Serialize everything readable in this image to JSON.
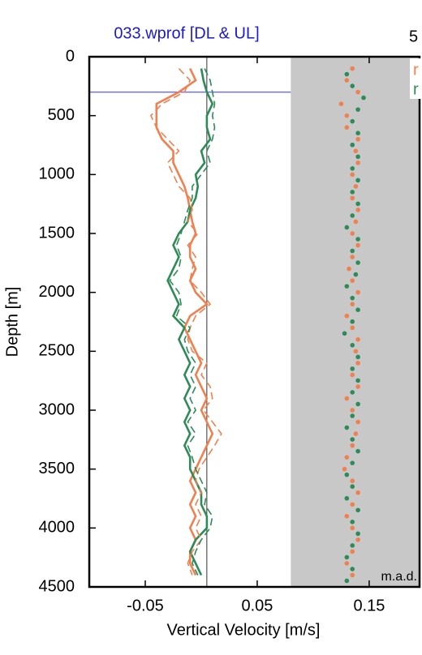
{
  "chart_data": {
    "type": "line",
    "title": "033.wprof [DL & UL]",
    "top_right_label": "5",
    "x_label": "Vertical Velocity [m/s]",
    "y_label": "Depth [m]",
    "annotation": "m.a.d.",
    "xlim": [
      -0.1,
      0.195
    ],
    "ylim": [
      0,
      4500
    ],
    "y_inverted": true,
    "xticks": [
      -0.05,
      0.05,
      0.15
    ],
    "yticks": [
      0,
      500,
      1000,
      1500,
      2000,
      2500,
      3000,
      3500,
      4000,
      4500
    ],
    "shaded_from": 0.08,
    "shade_color": "#c8c8c8",
    "hline": 300,
    "hline_color": "#7070e8",
    "vline": 0.005,
    "depth": [
      100,
      200,
      300,
      400,
      500,
      600,
      700,
      800,
      900,
      1000,
      1100,
      1200,
      1300,
      1400,
      1500,
      1600,
      1700,
      1800,
      1900,
      2000,
      2100,
      2200,
      2300,
      2400,
      2500,
      2600,
      2700,
      2800,
      2900,
      3000,
      3100,
      3200,
      3300,
      3400,
      3500,
      3600,
      3700,
      3800,
      3900,
      4000,
      4100,
      4200,
      4300,
      4400
    ],
    "series": [
      {
        "name": "r",
        "color": "#f08050",
        "style": "solid",
        "values": [
          -0.01,
          -0.005,
          -0.02,
          -0.04,
          -0.04,
          -0.04,
          -0.035,
          -0.025,
          -0.025,
          -0.02,
          -0.015,
          -0.012,
          -0.01,
          -0.008,
          -0.005,
          -0.01,
          -0.01,
          -0.005,
          -0.01,
          -0.005,
          0.005,
          -0.01,
          -0.015,
          -0.01,
          -0.005,
          0.0,
          -0.005,
          0.0,
          0.005,
          0.0,
          0.005,
          0.01,
          0.005,
          0.0,
          -0.005,
          -0.01,
          -0.005,
          -0.01,
          -0.005,
          -0.01,
          -0.005,
          -0.01,
          -0.01,
          -0.005
        ]
      },
      {
        "name": "r",
        "color": "#2e8b57",
        "style": "solid",
        "values": [
          0.0,
          0.002,
          0.005,
          0.01,
          0.005,
          0.005,
          0.008,
          0.0,
          0.003,
          -0.005,
          -0.003,
          -0.005,
          -0.01,
          -0.012,
          -0.02,
          -0.025,
          -0.02,
          -0.025,
          -0.03,
          -0.025,
          -0.02,
          -0.025,
          -0.015,
          -0.02,
          -0.015,
          -0.01,
          -0.015,
          -0.01,
          -0.015,
          -0.01,
          -0.015,
          -0.01,
          -0.015,
          -0.01,
          -0.01,
          -0.005,
          0.0,
          0.0,
          0.005,
          0.005,
          -0.005,
          -0.01,
          -0.005,
          0.0
        ]
      },
      {
        "color": "#f08050",
        "style": "dashed",
        "values": [
          -0.02,
          -0.01,
          -0.015,
          -0.035,
          -0.045,
          -0.04,
          -0.03,
          -0.02,
          -0.03,
          -0.025,
          -0.02,
          -0.01,
          -0.008,
          -0.012,
          -0.003,
          -0.012,
          -0.005,
          -0.008,
          -0.01,
          0.0,
          0.008,
          -0.005,
          -0.01,
          -0.012,
          -0.008,
          0.005,
          0.0,
          0.008,
          0.01,
          0.002,
          0.01,
          0.018,
          0.012,
          0.005,
          -0.002,
          -0.005,
          0.0,
          -0.005,
          0.0,
          -0.005,
          0.0,
          -0.008,
          -0.012,
          -0.008
        ]
      },
      {
        "color": "#2e8b57",
        "style": "dashed",
        "values": [
          0.003,
          0.008,
          0.01,
          0.012,
          0.01,
          0.012,
          0.01,
          0.005,
          0.008,
          0.0,
          -0.008,
          -0.008,
          -0.012,
          -0.015,
          -0.018,
          -0.022,
          -0.018,
          -0.02,
          -0.028,
          -0.02,
          -0.018,
          -0.022,
          -0.01,
          -0.015,
          -0.012,
          -0.005,
          -0.01,
          -0.005,
          -0.01,
          -0.005,
          -0.012,
          -0.005,
          -0.012,
          -0.008,
          -0.005,
          0.0,
          0.005,
          0.003,
          0.01,
          0.008,
          0.0,
          -0.005,
          -0.008,
          -0.003
        ]
      }
    ],
    "mad_series": [
      {
        "color": "#f08050",
        "values": [
          0.135,
          0.13,
          0.14,
          0.125,
          0.13,
          0.13,
          0.14,
          0.138,
          0.14,
          0.135,
          0.138,
          0.135,
          0.14,
          0.138,
          0.135,
          0.14,
          0.135,
          0.132,
          0.135,
          0.14,
          0.135,
          0.13,
          0.135,
          0.14,
          0.138,
          0.14,
          0.135,
          0.14,
          0.13,
          0.135,
          0.14,
          0.138,
          0.135,
          0.13,
          0.128,
          0.135,
          0.14,
          0.135,
          0.13,
          0.135,
          0.14,
          0.135,
          0.13,
          0.135
        ]
      },
      {
        "color": "#2e8b57",
        "values": [
          0.13,
          0.135,
          0.145,
          0.14,
          0.135,
          0.14,
          0.135,
          0.14,
          0.135,
          0.14,
          0.135,
          0.14,
          0.135,
          0.13,
          0.14,
          0.135,
          0.14,
          0.138,
          0.13,
          0.135,
          0.14,
          0.135,
          0.128,
          0.135,
          0.14,
          0.135,
          0.14,
          0.135,
          0.14,
          0.135,
          0.13,
          0.135,
          0.14,
          0.135,
          0.13,
          0.135,
          0.13,
          0.14,
          0.135,
          0.14,
          0.135,
          0.13,
          0.135,
          0.13
        ]
      }
    ]
  }
}
